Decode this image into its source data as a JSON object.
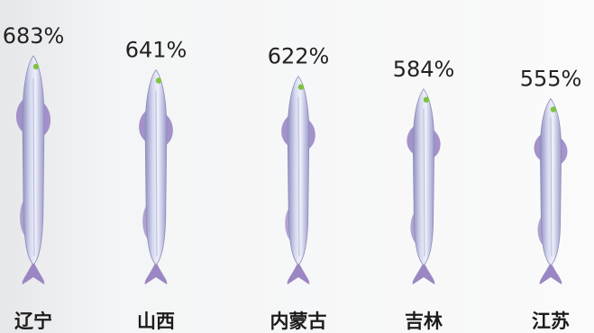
{
  "chart_data": {
    "type": "bar",
    "categories": [
      "辽宁",
      "山西",
      "内蒙古",
      "吉林",
      "江苏"
    ],
    "values": [
      683,
      641,
      622,
      584,
      555
    ],
    "value_labels": [
      "683%",
      "641%",
      "622%",
      "584%",
      "555%"
    ],
    "unit": "%",
    "mark_style": "fish pictograph",
    "colors": {
      "body": "#c9cde8",
      "fin": "#9b86c4",
      "eye": "#7fc241"
    },
    "grid": false,
    "legend": "none"
  }
}
